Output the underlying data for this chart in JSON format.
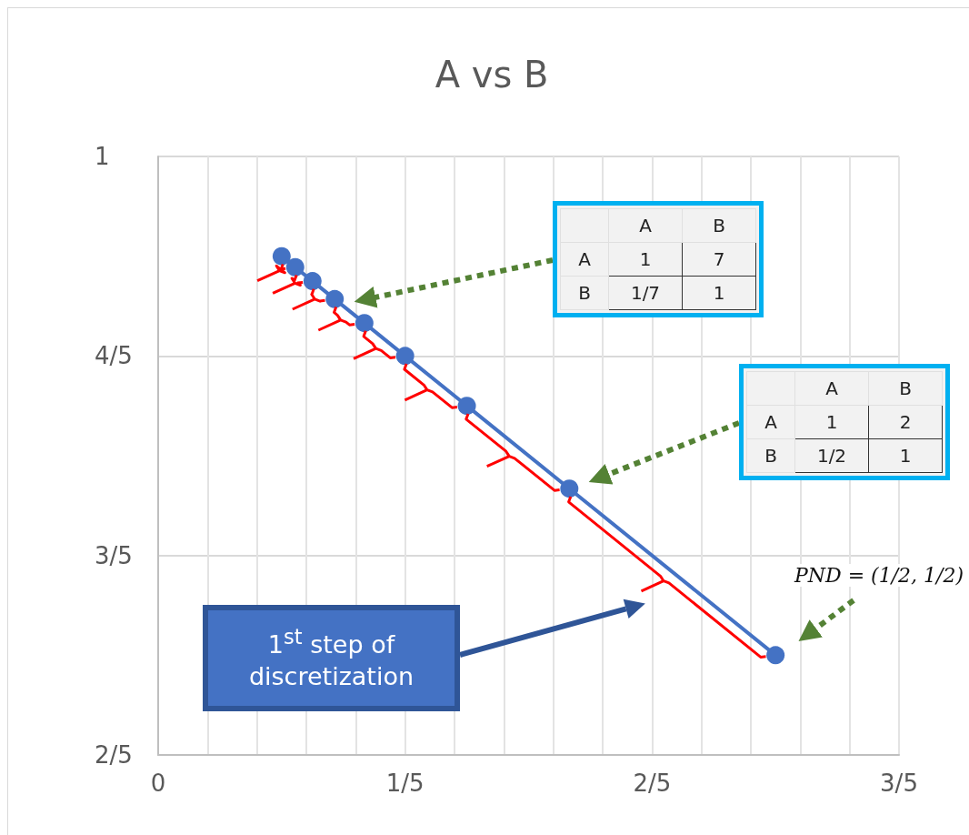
{
  "chart_data": {
    "type": "line",
    "title": "A vs B",
    "x": [
      0.1,
      0.111,
      0.125,
      0.143,
      0.167,
      0.2,
      0.25,
      0.333,
      0.5
    ],
    "series": [
      {
        "color": "#4472c4",
        "values": [
          0.9,
          0.889,
          0.875,
          0.857,
          0.833,
          0.8,
          0.75,
          0.667,
          0.5
        ]
      }
    ],
    "marker": "circle",
    "xlim": [
      0,
      0.6
    ],
    "xticks": [
      {
        "value": 0,
        "label": "0"
      },
      {
        "value": 0.04,
        "label": null
      },
      {
        "value": 0.08,
        "label": null
      },
      {
        "value": 0.12,
        "label": null
      },
      {
        "value": 0.16,
        "label": null
      },
      {
        "value": 0.2,
        "label": "1/5"
      },
      {
        "value": 0.24,
        "label": null
      },
      {
        "value": 0.28,
        "label": null
      },
      {
        "value": 0.32,
        "label": null
      },
      {
        "value": 0.36,
        "label": null
      },
      {
        "value": 0.4,
        "label": "2/5"
      },
      {
        "value": 0.44,
        "label": null
      },
      {
        "value": 0.48,
        "label": null
      },
      {
        "value": 0.52,
        "label": null
      },
      {
        "value": 0.56,
        "label": null
      },
      {
        "value": 0.6,
        "label": "3/5"
      }
    ],
    "ylim": [
      0.4,
      1
    ],
    "yticks": [
      {
        "value": 0.4,
        "label": "2/5"
      },
      {
        "value": 0.6,
        "label": "3/5"
      },
      {
        "value": 0.8,
        "label": "4/5"
      },
      {
        "value": 1,
        "label": "1"
      }
    ],
    "grid": true,
    "annotations": [
      "A B\nA 1 7\nB 1/7 1",
      "A B\nA 1 2\nB 1/2 1",
      "PND = (1/2, 1/2)",
      "1$^{st}$ step of discretization"
    ]
  }
}
